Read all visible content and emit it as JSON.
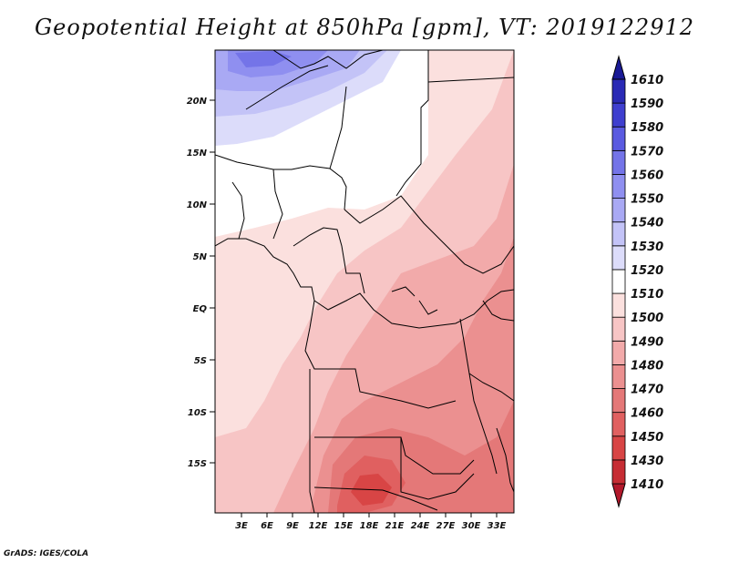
{
  "title": "Geopotential Height at 850hPa [gpm], VT: 2019122912",
  "credit": "GrADS: IGES/COLA",
  "map": {
    "lat_labels": [
      "20N",
      "15N",
      "10N",
      "5N",
      "EQ",
      "5S",
      "10S",
      "15S"
    ],
    "lon_labels": [
      "3E",
      "6E",
      "9E",
      "12E",
      "15E",
      "18E",
      "21E",
      "24E",
      "27E",
      "30E",
      "33E"
    ]
  },
  "colorbar": {
    "levels": [
      "1410",
      "1430",
      "1450",
      "1460",
      "1470",
      "1480",
      "1490",
      "1500",
      "1510",
      "1520",
      "1530",
      "1540",
      "1550",
      "1560",
      "1570",
      "1580",
      "1590",
      "1610"
    ],
    "colors": [
      "#b2182b",
      "#c62d34",
      "#d84545",
      "#e06060",
      "#e47878",
      "#eb9090",
      "#f2aaaa",
      "#f7c5c5",
      "#fbe0de",
      "#ffffff",
      "#dcdcfa",
      "#c3c3f7",
      "#a9a9f4",
      "#8f8ff0",
      "#7474e8",
      "#5a5ae0",
      "#3f3fcf",
      "#2a2ab5",
      "#1a1a96"
    ]
  }
}
